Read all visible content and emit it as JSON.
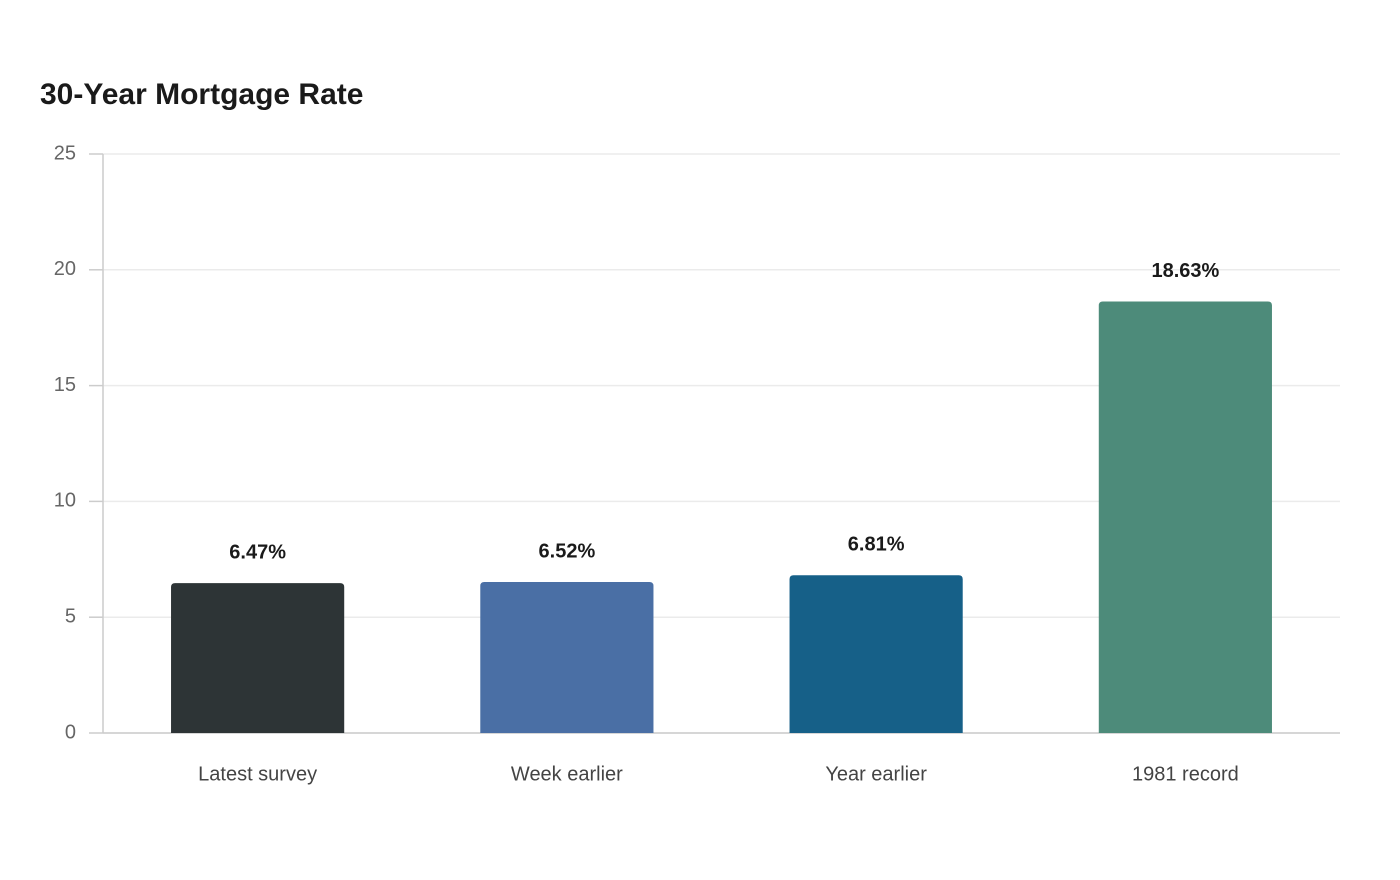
{
  "chart_data": {
    "type": "bar",
    "title": "30-Year Mortgage Rate",
    "categories": [
      "Latest survey",
      "Week earlier",
      "Year earlier",
      "1981 record"
    ],
    "values": [
      6.47,
      6.52,
      6.81,
      18.63
    ],
    "value_labels": [
      "6.47%",
      "6.52%",
      "6.81%",
      "18.63%"
    ],
    "colors": [
      "#2d3436",
      "#4a6fa5",
      "#166088",
      "#4d8b7a"
    ],
    "ylim": [
      0,
      25
    ],
    "yticks": [
      0,
      5,
      10,
      15,
      20,
      25
    ],
    "grid": true
  }
}
